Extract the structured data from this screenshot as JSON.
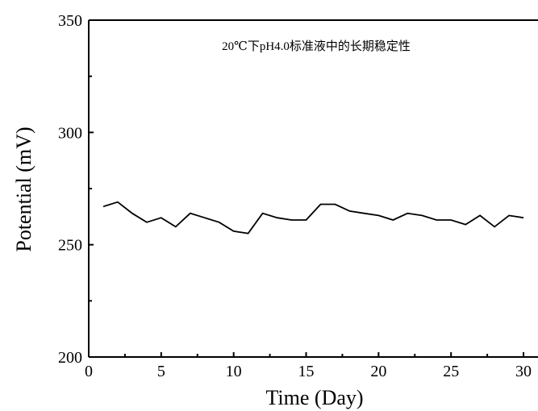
{
  "chart_data": {
    "type": "line",
    "title": "",
    "annotation": "20℃下pH4.0标准液中的长期稳定性",
    "xlabel": "Time (Day)",
    "ylabel": "Potential (mV)",
    "xlim": [
      0,
      31
    ],
    "ylim": [
      200,
      350
    ],
    "x_ticks": [
      "0",
      "5",
      "10",
      "15",
      "20",
      "25",
      "30"
    ],
    "y_ticks": [
      "200",
      "250",
      "300",
      "350"
    ],
    "grid": false,
    "legend": "none",
    "line_color": "#000000",
    "series": [
      {
        "x": [
          1,
          2,
          3,
          4,
          5,
          6,
          7,
          8,
          9,
          10,
          11,
          12,
          13,
          14,
          15,
          16,
          17,
          18,
          19,
          20,
          21,
          22,
          23,
          24,
          25,
          26,
          27,
          28,
          29,
          30
        ],
        "values": [
          267,
          269,
          264,
          260,
          262,
          258,
          264,
          262,
          260,
          256,
          255,
          264,
          262,
          261,
          261,
          268,
          268,
          265,
          264,
          263,
          261,
          264,
          263,
          261,
          261,
          259,
          263,
          258,
          263,
          262
        ]
      }
    ]
  }
}
